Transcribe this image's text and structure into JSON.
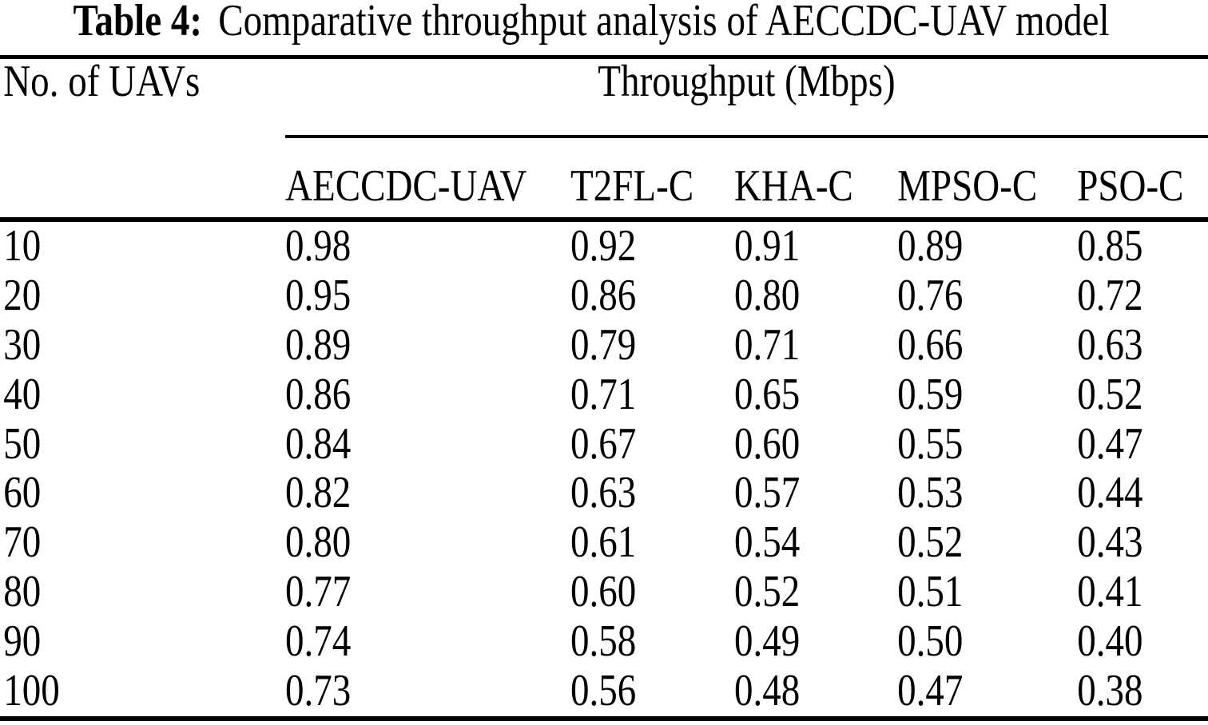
{
  "caption": {
    "label": "Table 4:",
    "text": "Comparative throughput analysis of AECCDC-UAV model"
  },
  "table": {
    "row_header": "No. of UAVs",
    "span_header": "Throughput (Mbps)",
    "unit": "Mbps",
    "columns": [
      "AECCDC-UAV",
      "T2FL-C",
      "KHA-C",
      "MPSO-C",
      "PSO-C"
    ],
    "rows": [
      {
        "uavs": "10",
        "values": [
          "0.98",
          "0.92",
          "0.91",
          "0.89",
          "0.85"
        ]
      },
      {
        "uavs": "20",
        "values": [
          "0.95",
          "0.86",
          "0.80",
          "0.76",
          "0.72"
        ]
      },
      {
        "uavs": "30",
        "values": [
          "0.89",
          "0.79",
          "0.71",
          "0.66",
          "0.63"
        ]
      },
      {
        "uavs": "40",
        "values": [
          "0.86",
          "0.71",
          "0.65",
          "0.59",
          "0.52"
        ]
      },
      {
        "uavs": "50",
        "values": [
          "0.84",
          "0.67",
          "0.60",
          "0.55",
          "0.47"
        ]
      },
      {
        "uavs": "60",
        "values": [
          "0.82",
          "0.63",
          "0.57",
          "0.53",
          "0.44"
        ]
      },
      {
        "uavs": "70",
        "values": [
          "0.80",
          "0.61",
          "0.54",
          "0.52",
          "0.43"
        ]
      },
      {
        "uavs": "80",
        "values": [
          "0.77",
          "0.60",
          "0.52",
          "0.51",
          "0.41"
        ]
      },
      {
        "uavs": "90",
        "values": [
          "0.74",
          "0.58",
          "0.49",
          "0.50",
          "0.40"
        ]
      },
      {
        "uavs": "100",
        "values": [
          "0.73",
          "0.56",
          "0.48",
          "0.47",
          "0.38"
        ]
      }
    ]
  },
  "colors": {
    "text": "#000000",
    "background": "#ffffff",
    "rule": "#000000"
  }
}
